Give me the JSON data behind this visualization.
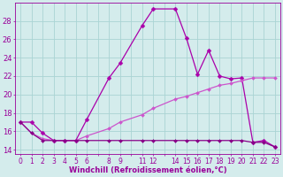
{
  "xlabel": "Windchill (Refroidissement éolien,°C)",
  "background_color": "#d4ecec",
  "grid_color": "#aad4d4",
  "ylim": [
    13.5,
    30.0
  ],
  "y_ticks": [
    14,
    16,
    18,
    20,
    22,
    24,
    26,
    28
  ],
  "xlim": [
    -0.5,
    23.5
  ],
  "series": [
    {
      "x": [
        0,
        1,
        2,
        3,
        4,
        5,
        6,
        8,
        9,
        11,
        12,
        14,
        15,
        16,
        17,
        18,
        19,
        20,
        21,
        22,
        23
      ],
      "y": [
        17.0,
        17.0,
        15.8,
        15.0,
        15.0,
        15.0,
        17.3,
        21.8,
        23.4,
        27.5,
        29.3,
        29.3,
        26.1,
        22.2,
        24.8,
        22.0,
        21.7,
        21.8,
        14.8,
        15.0,
        14.3
      ],
      "color": "#aa00aa",
      "linewidth": 0.9,
      "marker": "D",
      "markersize": 2.5
    },
    {
      "x": [
        0,
        1,
        2,
        3,
        4,
        5,
        6,
        8,
        9,
        11,
        12,
        14,
        15,
        16,
        17,
        18,
        19,
        20,
        21,
        22,
        23
      ],
      "y": [
        17.0,
        15.8,
        15.2,
        15.0,
        15.0,
        15.0,
        15.5,
        16.3,
        17.0,
        17.8,
        18.5,
        19.5,
        19.8,
        20.2,
        20.6,
        21.0,
        21.2,
        21.5,
        21.8,
        21.8,
        21.8
      ],
      "color": "#cc55cc",
      "linewidth": 0.9,
      "marker": "D",
      "markersize": 2.0
    },
    {
      "x": [
        0,
        1,
        2,
        3,
        4,
        5,
        6,
        8,
        9,
        11,
        12,
        14,
        15,
        16,
        17,
        18,
        19,
        20,
        21,
        22,
        23
      ],
      "y": [
        17.0,
        15.8,
        15.0,
        15.0,
        15.0,
        15.0,
        15.0,
        15.0,
        15.0,
        15.0,
        15.0,
        15.0,
        15.0,
        15.0,
        15.0,
        15.0,
        15.0,
        15.0,
        14.8,
        14.8,
        14.3
      ],
      "color": "#880088",
      "linewidth": 0.9,
      "marker": "D",
      "markersize": 2.0
    }
  ],
  "tick_color": "#990099",
  "label_fontsize": 5.5,
  "ylabel_fontsize": 6.0
}
